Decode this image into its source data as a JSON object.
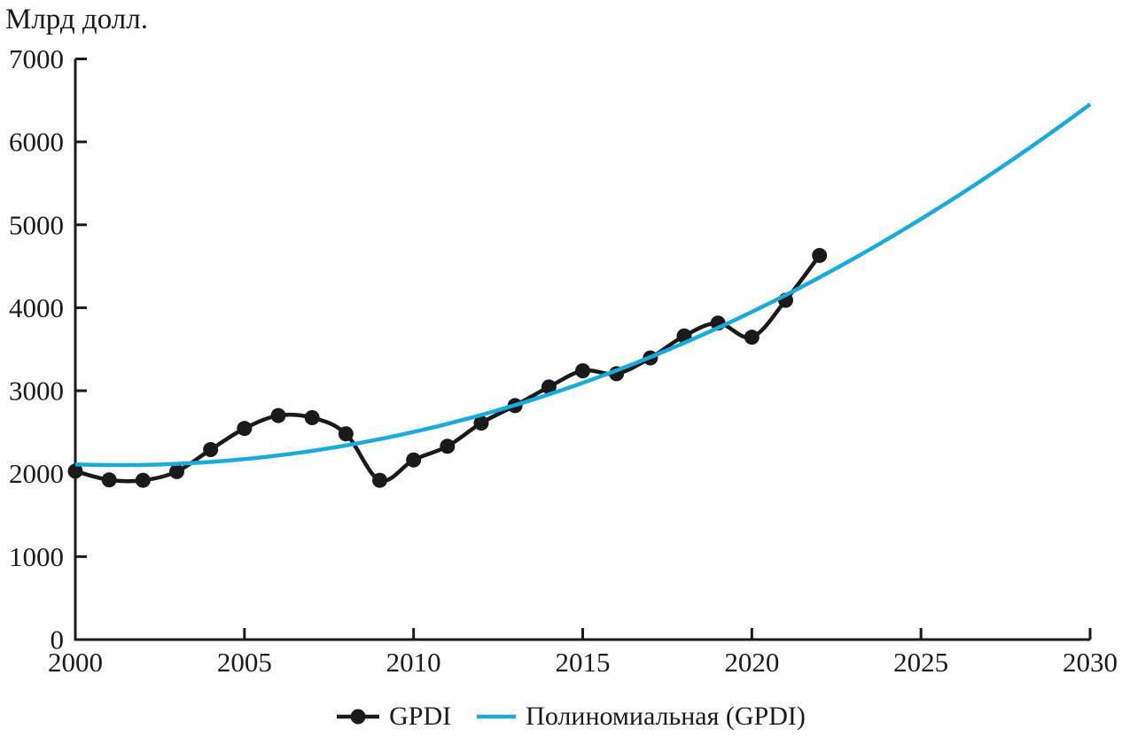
{
  "figure": {
    "background": "#ffffff",
    "text_color": "#1a1a1a"
  },
  "chart_data": {
    "type": "line",
    "title": "",
    "ylabel": "Млрд долл.",
    "xlabel": "",
    "xlim": [
      2000,
      2030
    ],
    "ylim": [
      0,
      7000
    ],
    "x_ticks": [
      2000,
      2005,
      2010,
      2015,
      2020,
      2025,
      2030
    ],
    "y_ticks": [
      0,
      1000,
      2000,
      3000,
      4000,
      5000,
      6000,
      7000
    ],
    "grid": false,
    "legend_position": "bottom-center",
    "series": [
      {
        "name": "GPDI",
        "type": "line-with-markers",
        "color": "#1a1a1a",
        "x": [
          2000,
          2001,
          2002,
          2003,
          2004,
          2005,
          2006,
          2007,
          2008,
          2009,
          2010,
          2011,
          2012,
          2013,
          2014,
          2015,
          2016,
          2017,
          2018,
          2019,
          2020,
          2021,
          2022
        ],
        "values": [
          2030,
          1925,
          1920,
          2025,
          2290,
          2545,
          2700,
          2675,
          2480,
          1920,
          2165,
          2330,
          2610,
          2820,
          3045,
          3240,
          3205,
          3395,
          3660,
          3815,
          3645,
          4090,
          4630
        ]
      },
      {
        "name": "Полиномиальная (GPDI)",
        "type": "polynomial-trendline",
        "color": "#1ca9dc",
        "degree": 2,
        "coefficients": {
          "a": 5.28,
          "b": -13.7,
          "c": 2112
        },
        "x_range": [
          2000,
          2030
        ]
      }
    ]
  }
}
